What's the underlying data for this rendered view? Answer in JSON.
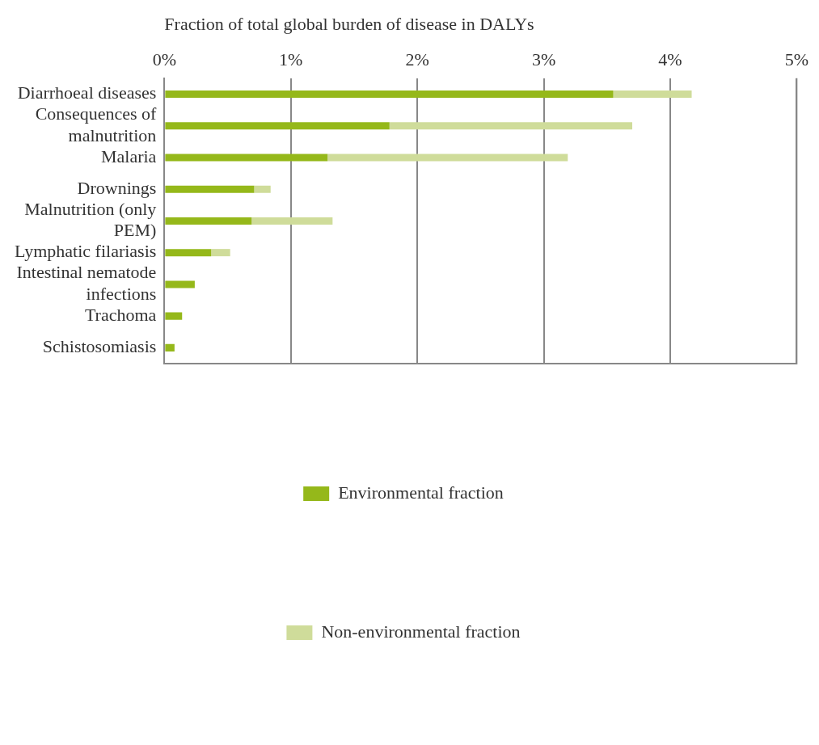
{
  "chart_data": {
    "type": "bar",
    "orientation": "horizontal",
    "stacked": true,
    "xlabel": "Fraction of total global burden of disease in DALYs",
    "categories": [
      "Diarrhoeal diseases",
      "Consequences of malnutrition",
      "Malaria",
      "Drownings",
      "Malnutrition (only PEM)",
      "Lymphatic filariasis",
      "Intestinal nematode infections",
      "Trachoma",
      "Schistosomiasis"
    ],
    "series": [
      {
        "name": "Environmental fraction",
        "color": "#95b81a",
        "values": [
          3.55,
          1.78,
          1.29,
          0.71,
          0.69,
          0.37,
          0.24,
          0.14,
          0.08
        ]
      },
      {
        "name": "Non-environmental fraction",
        "color": "#cfdc9a",
        "values": [
          0.62,
          1.92,
          1.9,
          0.13,
          0.64,
          0.15,
          0,
          0,
          0
        ]
      }
    ],
    "xlim": [
      0,
      5
    ],
    "xticks": [
      {
        "value": 0,
        "label": "0%"
      },
      {
        "value": 1,
        "label": "1%"
      },
      {
        "value": 2,
        "label": "2%"
      },
      {
        "value": 3,
        "label": "3%"
      },
      {
        "value": 4,
        "label": "4%"
      },
      {
        "value": 5,
        "label": "5%"
      }
    ],
    "grid": "x",
    "legend": "bottom"
  }
}
